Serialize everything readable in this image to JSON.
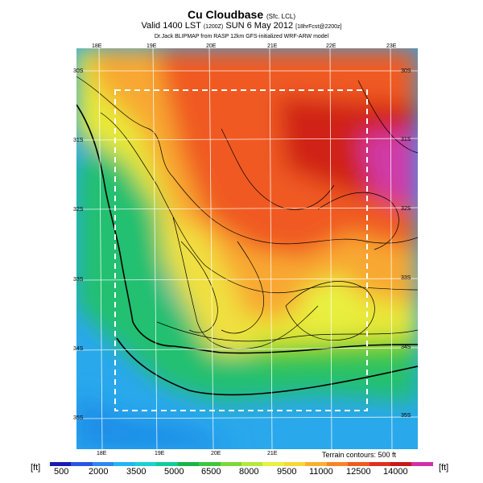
{
  "header": {
    "title": "Cu Cloudbase",
    "title_suffix": "(Sfc. LCL)",
    "valid_line": "Valid 1400 LST",
    "valid_zone": "(1200Z)",
    "valid_date": "SUN 6 May 2012",
    "valid_fcst": "[18hrFcst@2200z]",
    "credit": "Dr.Jack BLIPMAP from RASP 12km GFS-initialized WRF-ARW model"
  },
  "axes": {
    "top_lon": [
      "18E",
      "19E",
      "20E",
      "21E",
      "22E",
      "23E"
    ],
    "bottom_lon": [
      "18E",
      "19E",
      "20E",
      "21E"
    ],
    "left_lat": [
      "30S",
      "31S",
      "32S",
      "33S",
      "34S",
      "35S"
    ],
    "right_lat": [
      "30S",
      "31S",
      "32S",
      "33S",
      "34S",
      "35S"
    ]
  },
  "colorbar": {
    "unit_left": "[ft]",
    "unit_right": "[ft]",
    "labels": [
      "500",
      "2000",
      "3500",
      "5000",
      "6500",
      "8000",
      "9500",
      "11000",
      "12500",
      "14000"
    ],
    "colors": [
      "#1a1ab0",
      "#2a55e0",
      "#2f86f0",
      "#22b6f2",
      "#18d2d2",
      "#10cc98",
      "#18b44a",
      "#3cc83c",
      "#7cd838",
      "#b4e83c",
      "#e8f040",
      "#f8d838",
      "#f8b030",
      "#f88428",
      "#f05a20",
      "#e03020",
      "#c81818",
      "#d030a8"
    ]
  },
  "terrain_note": "Terrain contours: 500 ft"
}
